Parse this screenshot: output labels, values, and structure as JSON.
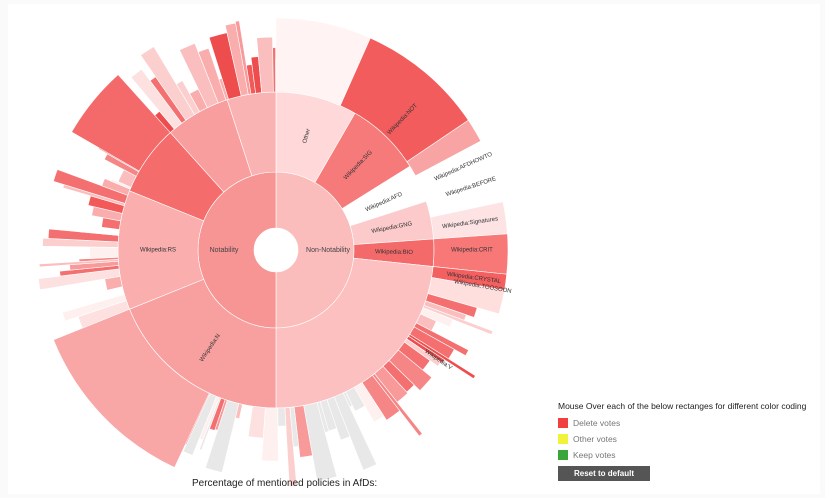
{
  "sunburst": {
    "center_hole": "",
    "inner_ring": [
      {
        "label": "Non-Notability",
        "share": 0.5
      },
      {
        "label": "Notability",
        "share": 0.5
      }
    ],
    "segment_labels": [
      "Other",
      "Wikipedia:SIG",
      "Wikipedia:NOT",
      "Wikipedia:AFD",
      "Wikipedia:GNG",
      "Wikipedia:BIO",
      "Wikipedia:AFDHOWTO",
      "Wikipedia:BEFORE",
      "Wikipedia:Signatures",
      "Wikipedia:CRIT",
      "Wikipedia:CRYSTAL",
      "Wikipedia:TOOSOON",
      "Wikipedia:V",
      "Wikipedia:N",
      "Wikipedia:RS"
    ]
  },
  "caption": "Percentage of mentioned policies in AfDs:",
  "legend": {
    "title": "Mouse Over each of the below rectanges for different color coding",
    "items": [
      {
        "label": "Delete votes",
        "color": "#f04040"
      },
      {
        "label": "Other votes",
        "color": "#f2f23a"
      },
      {
        "label": "Keep votes",
        "color": "#3aa53a"
      }
    ],
    "reset_label": "Reset to default"
  },
  "colors": {
    "accent": "#f05050",
    "panel": "#ffffff",
    "button": "#555555"
  }
}
